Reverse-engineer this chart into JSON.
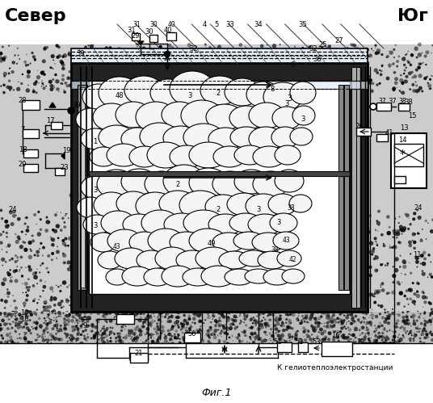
{
  "title_north": "Север",
  "title_south": "Юг",
  "fig_label": "Фиг.1",
  "bottom_label": "К гелиотеплоэлектростанции",
  "bg_color": "#ffffff",
  "soil_dark": "#1a1a1a",
  "soil_mid": "#555555",
  "stone_fill": "#f5f5f5",
  "insulation_fill": "#222222",
  "wall_white": "#ffffff",
  "glass_fill": "#e0ecf8"
}
